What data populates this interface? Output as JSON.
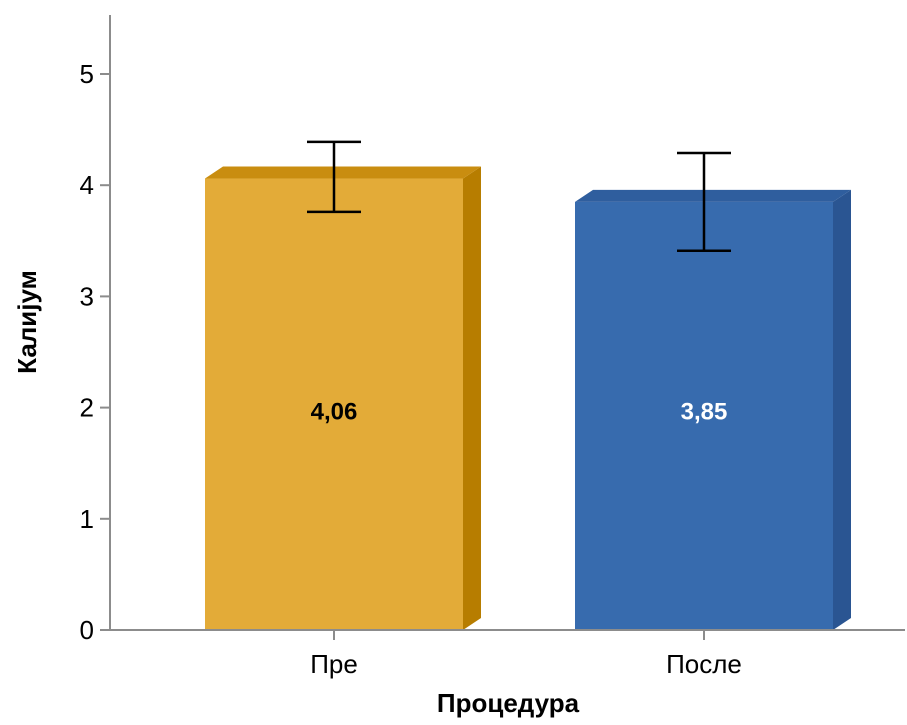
{
  "chart_data": {
    "type": "bar",
    "title": "",
    "xlabel": "Процедура",
    "ylabel": "Калијум",
    "categories": [
      "Пре",
      "После"
    ],
    "values": [
      4.06,
      3.85
    ],
    "value_labels": [
      "4,06",
      "3,85"
    ],
    "error_bars": [
      {
        "low": 3.76,
        "high": 4.39
      },
      {
        "low": 3.41,
        "high": 4.29
      }
    ],
    "ylim": [
      0,
      5.5
    ],
    "yticks": [
      0,
      1,
      2,
      3,
      4,
      5
    ],
    "grid": false,
    "legend": "none",
    "style": "3d",
    "colors": {
      "bars": [
        "#e3ab38",
        "#376bae"
      ],
      "bar_sides": [
        "#b77d00",
        "#2a5592"
      ],
      "bar_tops": [
        "#c98d10",
        "#2f5e9e"
      ],
      "label_colors": [
        "#000000",
        "#ffffff"
      ],
      "axis": "#8c8c8c",
      "error_bar": "#000000"
    }
  }
}
